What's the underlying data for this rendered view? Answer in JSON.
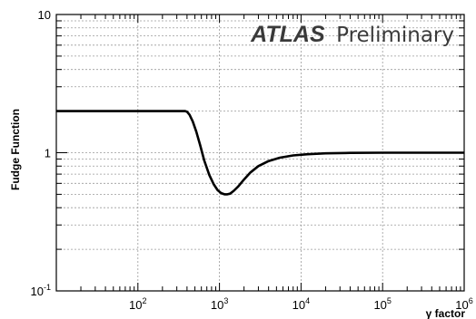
{
  "chart_data": {
    "type": "line",
    "title": "",
    "xlabel": "γ factor",
    "ylabel": "Fudge Function",
    "xscale": "log",
    "yscale": "log",
    "xlim": [
      10,
      1000000
    ],
    "ylim": [
      0.1,
      10
    ],
    "grid": true,
    "annotation": {
      "bold": "ATLAS",
      "normal": "Preliminary"
    },
    "x_ticks": [
      {
        "base": "10",
        "exp": "2",
        "value": 100
      },
      {
        "base": "10",
        "exp": "3",
        "value": 1000
      },
      {
        "base": "10",
        "exp": "4",
        "value": 10000
      },
      {
        "base": "10",
        "exp": "5",
        "value": 100000
      },
      {
        "base": "10",
        "exp": "6",
        "value": 1000000
      }
    ],
    "y_ticks": [
      {
        "base": "10",
        "exp": "-1",
        "value": 0.1
      },
      {
        "base": "1",
        "exp": "",
        "value": 1
      },
      {
        "base": "10",
        "exp": "",
        "value": 10
      }
    ],
    "series": [
      {
        "x": [
          10,
          100,
          300,
          380,
          400,
          430,
          470,
          520,
          580,
          650,
          750,
          850,
          950,
          1050,
          1150,
          1250,
          1350,
          1500,
          1700,
          2000,
          2400,
          3000,
          4000,
          5500,
          8000,
          12000,
          20000,
          40000,
          100000,
          1000000
        ],
        "y": [
          2.0,
          2.0,
          2.0,
          2.0,
          1.98,
          1.88,
          1.68,
          1.42,
          1.13,
          0.88,
          0.69,
          0.59,
          0.535,
          0.51,
          0.5,
          0.5,
          0.505,
          0.53,
          0.57,
          0.64,
          0.72,
          0.8,
          0.87,
          0.92,
          0.955,
          0.975,
          0.99,
          0.997,
          1.0,
          1.0
        ]
      }
    ],
    "colors": {
      "line": "#000000",
      "grid": "#9a9a9a",
      "frame": "#000000",
      "annotation": "#3a3a3a"
    }
  }
}
